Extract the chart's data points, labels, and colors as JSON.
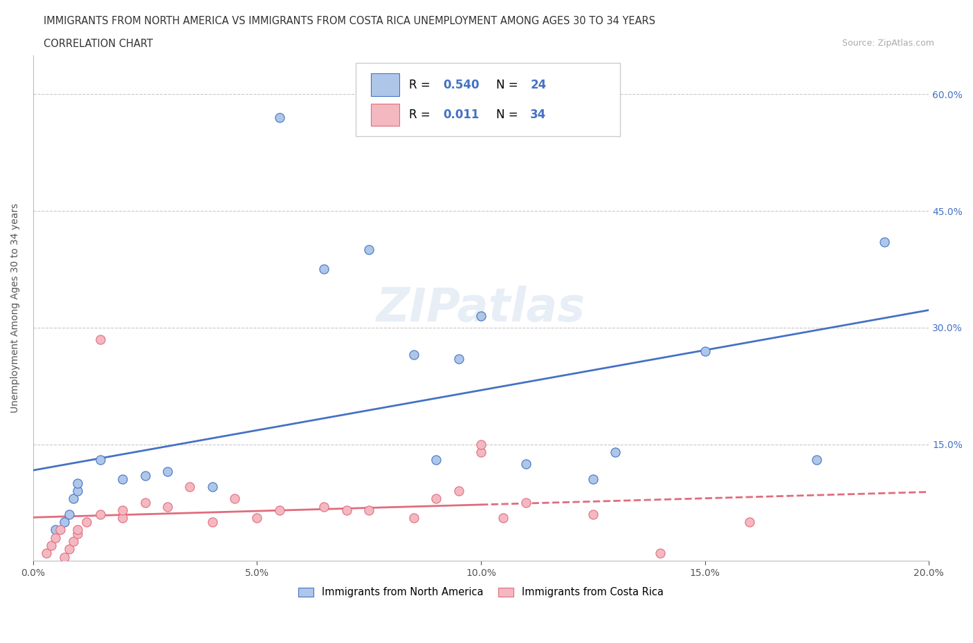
{
  "title_line1": "IMMIGRANTS FROM NORTH AMERICA VS IMMIGRANTS FROM COSTA RICA UNEMPLOYMENT AMONG AGES 30 TO 34 YEARS",
  "title_line2": "CORRELATION CHART",
  "source_text": "Source: ZipAtlas.com",
  "ylabel": "Unemployment Among Ages 30 to 34 years",
  "xlim": [
    0.0,
    0.2
  ],
  "ylim": [
    0.0,
    0.65
  ],
  "ytick_positions": [
    0.15,
    0.3,
    0.45,
    0.6
  ],
  "ytick_labels": [
    "15.0%",
    "30.0%",
    "45.0%",
    "60.0%"
  ],
  "xtick_positions": [
    0.0,
    0.05,
    0.1,
    0.15,
    0.2
  ],
  "xtick_labels": [
    "0.0%",
    "5.0%",
    "10.0%",
    "15.0%",
    "20.0%"
  ],
  "north_america_color": "#aec6e8",
  "costa_rica_color": "#f4b8c1",
  "north_america_line_color": "#4472c4",
  "costa_rica_line_color": "#e06c7d",
  "R_north_america": "0.540",
  "N_north_america": "24",
  "R_costa_rica": "0.011",
  "N_costa_rica": "34",
  "legend_label_1": "Immigrants from North America",
  "legend_label_2": "Immigrants from Costa Rica",
  "watermark": "ZIPatlas",
  "na_x": [
    0.005,
    0.007,
    0.008,
    0.009,
    0.01,
    0.01,
    0.015,
    0.02,
    0.025,
    0.03,
    0.04,
    0.055,
    0.065,
    0.075,
    0.085,
    0.09,
    0.095,
    0.1,
    0.11,
    0.125,
    0.13,
    0.15,
    0.175,
    0.19
  ],
  "na_y": [
    0.04,
    0.05,
    0.06,
    0.08,
    0.09,
    0.1,
    0.13,
    0.105,
    0.11,
    0.115,
    0.095,
    0.57,
    0.375,
    0.4,
    0.265,
    0.13,
    0.26,
    0.315,
    0.125,
    0.105,
    0.14,
    0.27,
    0.13,
    0.41
  ],
  "cr_x": [
    0.003,
    0.004,
    0.005,
    0.006,
    0.007,
    0.008,
    0.009,
    0.01,
    0.01,
    0.012,
    0.015,
    0.015,
    0.02,
    0.02,
    0.025,
    0.03,
    0.035,
    0.04,
    0.045,
    0.05,
    0.055,
    0.065,
    0.07,
    0.075,
    0.085,
    0.09,
    0.095,
    0.1,
    0.1,
    0.105,
    0.11,
    0.125,
    0.14,
    0.16
  ],
  "cr_y": [
    0.01,
    0.02,
    0.03,
    0.04,
    0.005,
    0.015,
    0.025,
    0.035,
    0.04,
    0.05,
    0.06,
    0.285,
    0.055,
    0.065,
    0.075,
    0.07,
    0.095,
    0.05,
    0.08,
    0.055,
    0.065,
    0.07,
    0.065,
    0.065,
    0.055,
    0.08,
    0.09,
    0.14,
    0.15,
    0.055,
    0.075,
    0.06,
    0.01,
    0.05
  ]
}
